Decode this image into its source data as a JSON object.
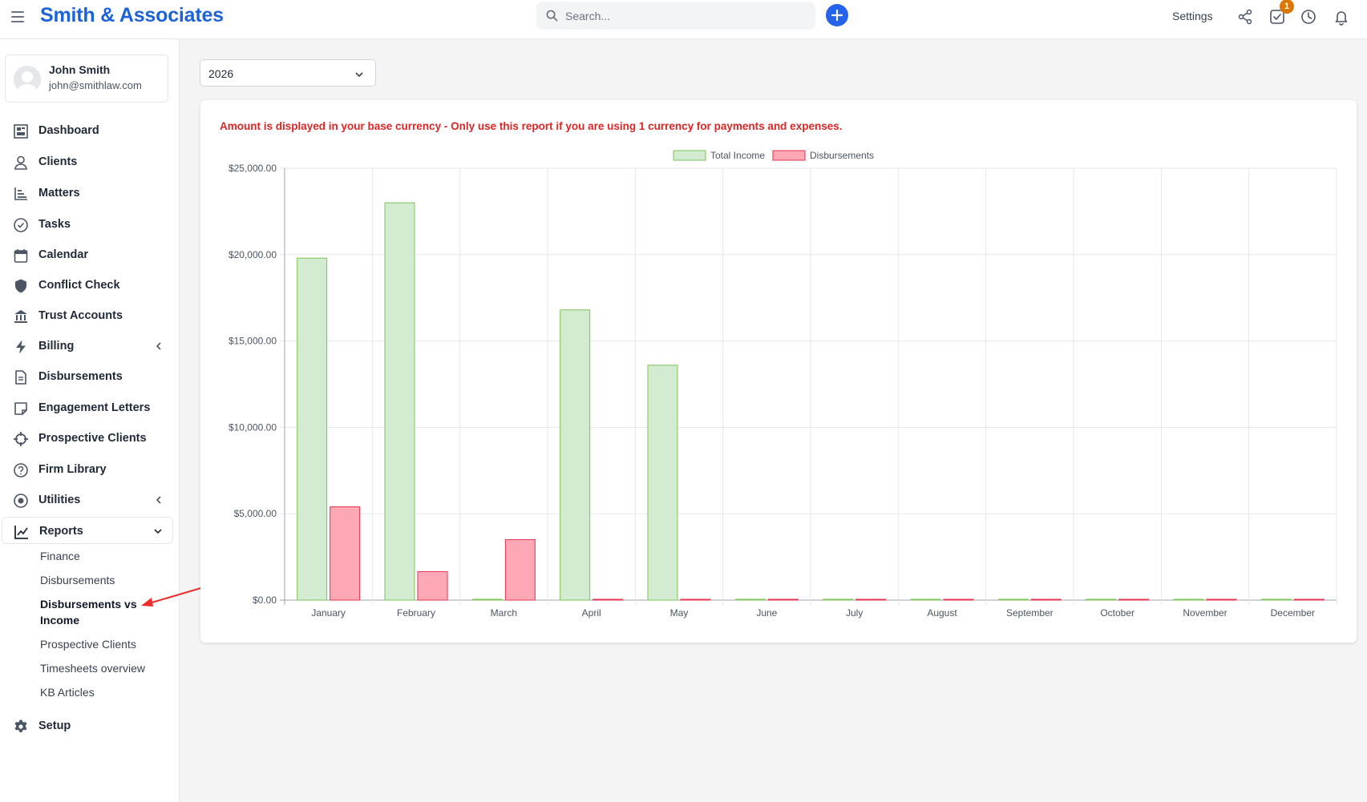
{
  "header": {
    "brand": "Smith & Associates",
    "search_placeholder": "Search...",
    "settings_label": "Settings",
    "notification_count": "1"
  },
  "user": {
    "name": "John Smith",
    "email": "john@smithlaw.com"
  },
  "sidebar": {
    "items": [
      {
        "label": "Dashboard",
        "icon": "dashboard-icon"
      },
      {
        "label": "Clients",
        "icon": "user-icon"
      },
      {
        "label": "Matters",
        "icon": "bar-chart-icon"
      },
      {
        "label": "Tasks",
        "icon": "check-circle-icon"
      },
      {
        "label": "Calendar",
        "icon": "calendar-icon"
      },
      {
        "label": "Conflict Check",
        "icon": "shield-icon"
      },
      {
        "label": "Trust Accounts",
        "icon": "bank-icon"
      },
      {
        "label": "Billing",
        "icon": "bolt-icon"
      },
      {
        "label": "Disbursements",
        "icon": "document-icon"
      },
      {
        "label": "Engagement Letters",
        "icon": "note-icon"
      },
      {
        "label": "Prospective Clients",
        "icon": "crosshair-icon"
      },
      {
        "label": "Firm Library",
        "icon": "question-circle-icon"
      },
      {
        "label": "Utilities",
        "icon": "target-icon"
      },
      {
        "label": "Reports",
        "icon": "line-chart-icon"
      },
      {
        "label": "Setup",
        "icon": "gear-icon"
      }
    ],
    "reports_sub": [
      "Finance",
      "Disbursements",
      "Disbursements vs Income",
      "Prospective Clients",
      "Timesheets overview",
      "KB Articles"
    ]
  },
  "filter": {
    "year": "2026"
  },
  "report": {
    "notice": "Amount is displayed in your base currency - Only use this report if you are using 1 currency for payments and expenses."
  },
  "chart_data": {
    "type": "bar",
    "categories": [
      "January",
      "February",
      "March",
      "April",
      "May",
      "June",
      "July",
      "August",
      "September",
      "October",
      "November",
      "December"
    ],
    "series": [
      {
        "name": "Total Income",
        "values": [
          19800,
          23000,
          0,
          16800,
          13600,
          0,
          0,
          0,
          0,
          0,
          0,
          0
        ],
        "color": "#d3ebd1",
        "stroke": "#7cc45a"
      },
      {
        "name": "Disbursements",
        "values": [
          5400,
          1650,
          3500,
          0,
          0,
          0,
          0,
          0,
          0,
          0,
          0,
          0
        ],
        "color": "#ffa8b5",
        "stroke": "#e0344f"
      }
    ],
    "yticks": [
      "$0.00",
      "$5,000.00",
      "$10,000.00",
      "$15,000.00",
      "$20,000.00",
      "$25,000.00"
    ],
    "ylim": [
      0,
      25000
    ],
    "grid": true,
    "legend": "top-center"
  }
}
